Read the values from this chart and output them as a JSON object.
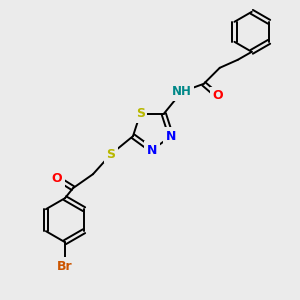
{
  "background_color": "#ebebeb",
  "bond_color": "#000000",
  "atom_colors": {
    "S": "#b8b800",
    "N": "#0000ff",
    "O": "#ff0000",
    "Br": "#cc5500",
    "H": "#008888",
    "C": "#000000"
  },
  "figsize": [
    3.0,
    3.0
  ],
  "dpi": 100
}
